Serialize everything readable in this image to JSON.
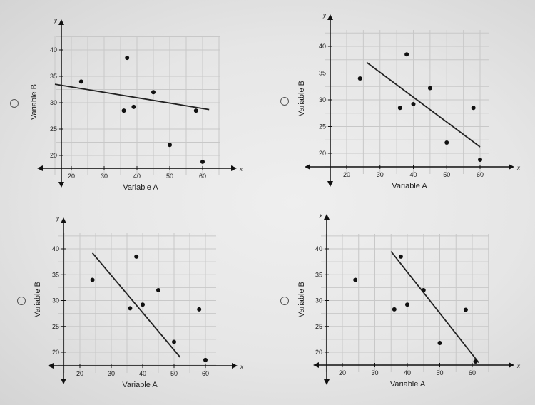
{
  "chart_data": [
    {
      "type": "scatter",
      "xlabel": "Variable A",
      "ylabel": "Variable B",
      "x_axis_name": "x",
      "y_axis_name": "y",
      "x_ticks": [
        20,
        30,
        40,
        50,
        60
      ],
      "y_ticks": [
        20,
        25,
        30,
        35,
        40
      ],
      "xlim": [
        15,
        65
      ],
      "ylim": [
        18,
        42
      ],
      "grid": true,
      "points": [
        [
          23,
          34
        ],
        [
          36,
          28.5
        ],
        [
          37,
          38.5
        ],
        [
          39,
          29.2
        ],
        [
          45,
          32
        ],
        [
          50,
          22
        ],
        [
          58,
          28.5
        ],
        [
          60,
          18.8
        ]
      ],
      "trend_line": [
        [
          15,
          33.5
        ],
        [
          62,
          28.7
        ]
      ]
    },
    {
      "type": "scatter",
      "xlabel": "Variable A",
      "ylabel": "Variable B",
      "x_axis_name": "x",
      "y_axis_name": "y",
      "x_ticks": [
        20,
        30,
        40,
        50,
        60
      ],
      "y_ticks": [
        20,
        25,
        30,
        35,
        40
      ],
      "xlim": [
        15,
        65
      ],
      "ylim": [
        18,
        43
      ],
      "grid": true,
      "points": [
        [
          24,
          34
        ],
        [
          36,
          28.5
        ],
        [
          38,
          38.5
        ],
        [
          40,
          29.2
        ],
        [
          45,
          32.2
        ],
        [
          50,
          22
        ],
        [
          58,
          28.5
        ],
        [
          60,
          18.8
        ]
      ],
      "trend_line": [
        [
          26,
          37
        ],
        [
          60,
          21.2
        ]
      ]
    },
    {
      "type": "scatter",
      "xlabel": "Variable A",
      "ylabel": "Variable B",
      "x_axis_name": "x",
      "y_axis_name": "y",
      "x_ticks": [
        20,
        30,
        40,
        50,
        60
      ],
      "y_ticks": [
        20,
        25,
        30,
        35,
        40
      ],
      "xlim": [
        15,
        67
      ],
      "ylim": [
        18,
        42
      ],
      "grid": true,
      "points": [
        [
          24,
          34
        ],
        [
          36,
          28.5
        ],
        [
          38,
          38.5
        ],
        [
          40,
          29.2
        ],
        [
          45,
          32
        ],
        [
          50,
          22
        ],
        [
          58,
          28.3
        ],
        [
          60,
          18.5
        ]
      ],
      "trend_line": [
        [
          24,
          39.2
        ],
        [
          52,
          19
        ]
      ]
    },
    {
      "type": "scatter",
      "xlabel": "Variable A",
      "ylabel": "Variable B",
      "x_axis_name": "x",
      "y_axis_name": "y",
      "x_ticks": [
        20,
        30,
        40,
        50,
        60
      ],
      "y_ticks": [
        20,
        25,
        30,
        35,
        40
      ],
      "xlim": [
        15,
        67
      ],
      "ylim": [
        18,
        42
      ],
      "grid": true,
      "points": [
        [
          24,
          34
        ],
        [
          36,
          28.3
        ],
        [
          38,
          38.5
        ],
        [
          40,
          29.2
        ],
        [
          45,
          32
        ],
        [
          50,
          21.8
        ],
        [
          58,
          28.2
        ],
        [
          61,
          18.2
        ]
      ],
      "trend_line": [
        [
          35,
          39.5
        ],
        [
          62,
          18
        ]
      ]
    }
  ]
}
